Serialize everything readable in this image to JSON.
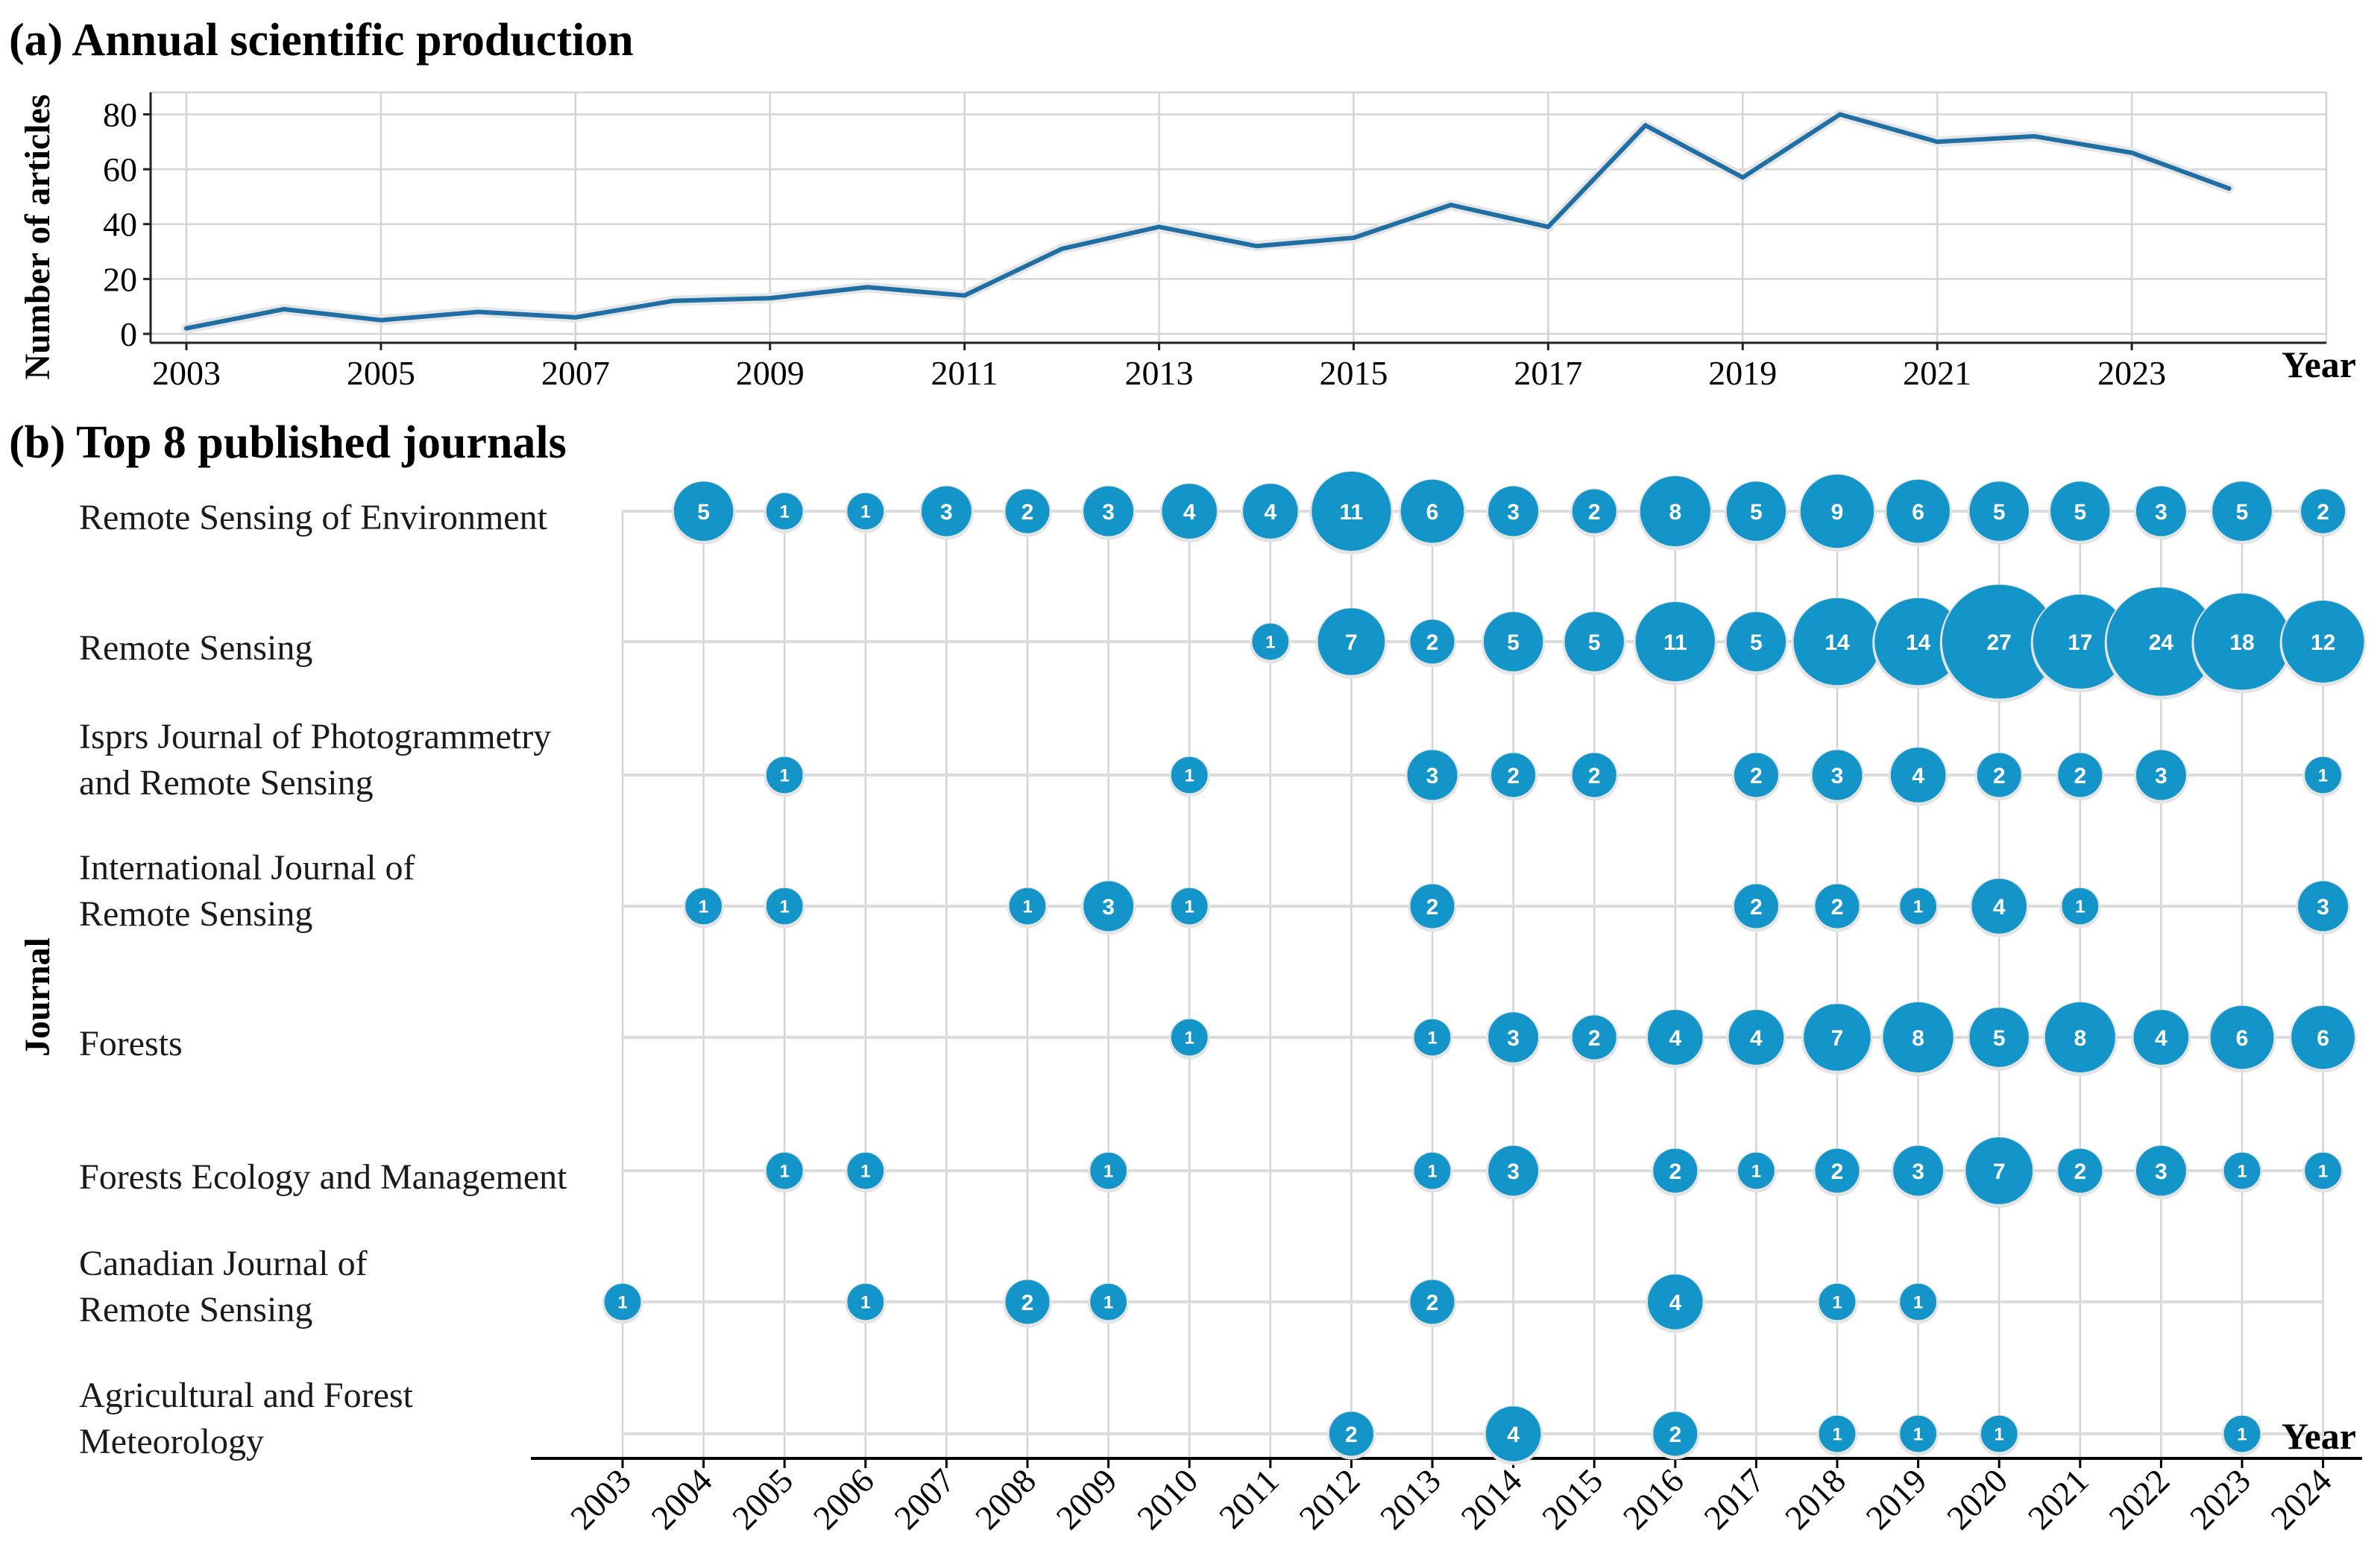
{
  "colors": {
    "line": "#1f6fa5",
    "bubble": "#1495c9",
    "grid": "#d4d4d4",
    "text": "#000000"
  },
  "chart_data": [
    {
      "type": "line",
      "title": "(a) Annual scientific production",
      "xlabel": "Year",
      "ylabel": "Number of articles",
      "x": [
        2003,
        2004,
        2005,
        2006,
        2007,
        2008,
        2009,
        2010,
        2011,
        2012,
        2013,
        2014,
        2015,
        2016,
        2017,
        2018,
        2019,
        2020,
        2021,
        2022,
        2023,
        2024
      ],
      "series": [
        {
          "name": "Articles",
          "values": [
            2,
            9,
            5,
            8,
            6,
            12,
            13,
            17,
            14,
            31,
            39,
            32,
            35,
            47,
            39,
            76,
            57,
            80,
            70,
            72,
            66,
            53
          ]
        }
      ],
      "xticks": [
        "2003",
        "2005",
        "2007",
        "2009",
        "2011",
        "2013",
        "2015",
        "2017",
        "2019",
        "2021",
        "2023"
      ],
      "yticks": [
        "0",
        "20",
        "40",
        "60",
        "80"
      ],
      "ylim": [
        0,
        88
      ],
      "xlim": [
        2003,
        2025
      ],
      "grid": true
    },
    {
      "type": "scatter",
      "title": "(b) Top 8 published journals",
      "xlabel": "Year",
      "ylabel": "Journal",
      "years": [
        "2003",
        "2004",
        "2005",
        "2006",
        "2007",
        "2008",
        "2009",
        "2010",
        "2011",
        "2012",
        "2013",
        "2014",
        "2015",
        "2016",
        "2017",
        "2018",
        "2019",
        "2020",
        "2021",
        "2022",
        "2023",
        "2024"
      ],
      "journals": [
        {
          "name_lines": [
            "Remote Sensing of Environment"
          ],
          "points": [
            [
              2004,
              5
            ],
            [
              2005,
              1
            ],
            [
              2006,
              1
            ],
            [
              2007,
              3
            ],
            [
              2008,
              2
            ],
            [
              2009,
              3
            ],
            [
              2010,
              4
            ],
            [
              2011,
              4
            ],
            [
              2012,
              11
            ],
            [
              2013,
              6
            ],
            [
              2014,
              3
            ],
            [
              2015,
              2
            ],
            [
              2016,
              8
            ],
            [
              2017,
              5
            ],
            [
              2018,
              9
            ],
            [
              2019,
              6
            ],
            [
              2020,
              5
            ],
            [
              2021,
              5
            ],
            [
              2022,
              3
            ],
            [
              2023,
              5
            ],
            [
              2024,
              2
            ]
          ]
        },
        {
          "name_lines": [
            "Remote Sensing"
          ],
          "points": [
            [
              2011,
              1
            ],
            [
              2012,
              7
            ],
            [
              2013,
              2
            ],
            [
              2014,
              5
            ],
            [
              2015,
              5
            ],
            [
              2016,
              11
            ],
            [
              2017,
              5
            ],
            [
              2018,
              14
            ],
            [
              2019,
              14
            ],
            [
              2020,
              27
            ],
            [
              2021,
              17
            ],
            [
              2022,
              24
            ],
            [
              2023,
              18
            ],
            [
              2024,
              12
            ]
          ]
        },
        {
          "name_lines": [
            "Isprs Journal of Photogrammetry",
            "and Remote Sensing"
          ],
          "points": [
            [
              2005,
              1
            ],
            [
              2010,
              1
            ],
            [
              2013,
              3
            ],
            [
              2014,
              2
            ],
            [
              2015,
              2
            ],
            [
              2017,
              2
            ],
            [
              2018,
              3
            ],
            [
              2019,
              4
            ],
            [
              2020,
              2
            ],
            [
              2021,
              2
            ],
            [
              2022,
              3
            ],
            [
              2024,
              1
            ]
          ]
        },
        {
          "name_lines": [
            "International Journal of",
            "Remote Sensing"
          ],
          "points": [
            [
              2004,
              1
            ],
            [
              2005,
              1
            ],
            [
              2008,
              1
            ],
            [
              2009,
              3
            ],
            [
              2010,
              1
            ],
            [
              2013,
              2
            ],
            [
              2017,
              2
            ],
            [
              2018,
              2
            ],
            [
              2019,
              1
            ],
            [
              2020,
              4
            ],
            [
              2021,
              1
            ],
            [
              2024,
              3
            ]
          ]
        },
        {
          "name_lines": [
            "Forests"
          ],
          "points": [
            [
              2010,
              1
            ],
            [
              2013,
              1
            ],
            [
              2014,
              3
            ],
            [
              2015,
              2
            ],
            [
              2016,
              4
            ],
            [
              2017,
              4
            ],
            [
              2018,
              7
            ],
            [
              2019,
              8
            ],
            [
              2020,
              5
            ],
            [
              2021,
              8
            ],
            [
              2022,
              4
            ],
            [
              2023,
              6
            ],
            [
              2024,
              6
            ]
          ]
        },
        {
          "name_lines": [
            "Forests Ecology and Management"
          ],
          "points": [
            [
              2005,
              1
            ],
            [
              2006,
              1
            ],
            [
              2009,
              1
            ],
            [
              2013,
              1
            ],
            [
              2014,
              3
            ],
            [
              2016,
              2
            ],
            [
              2017,
              1
            ],
            [
              2018,
              2
            ],
            [
              2019,
              3
            ],
            [
              2020,
              7
            ],
            [
              2021,
              2
            ],
            [
              2022,
              3
            ],
            [
              2023,
              1
            ],
            [
              2024,
              1
            ]
          ]
        },
        {
          "name_lines": [
            "Canadian Journal of",
            "Remote Sensing"
          ],
          "points": [
            [
              2003,
              1
            ],
            [
              2006,
              1
            ],
            [
              2008,
              2
            ],
            [
              2009,
              1
            ],
            [
              2013,
              2
            ],
            [
              2016,
              4
            ],
            [
              2018,
              1
            ],
            [
              2019,
              1
            ]
          ]
        },
        {
          "name_lines": [
            "Agricultural and Forest",
            "Meteorology"
          ],
          "points": [
            [
              2012,
              2
            ],
            [
              2014,
              4
            ],
            [
              2016,
              2
            ],
            [
              2018,
              1
            ],
            [
              2019,
              1
            ],
            [
              2020,
              1
            ],
            [
              2023,
              1
            ]
          ]
        }
      ],
      "grid": true
    }
  ]
}
